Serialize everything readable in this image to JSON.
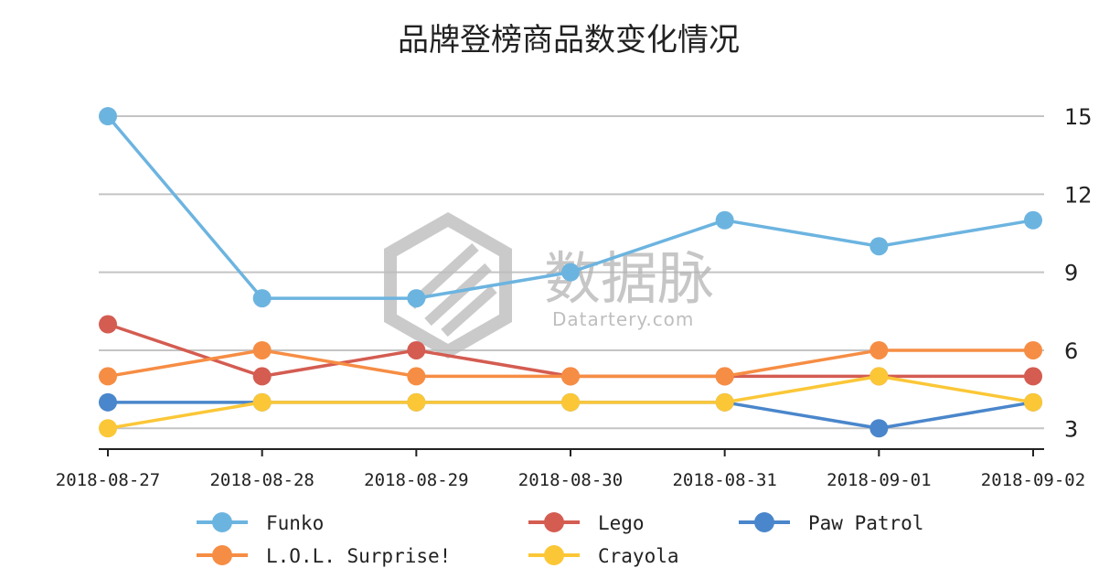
{
  "chart_data": {
    "type": "line",
    "title": "品牌登榜商品数变化情况",
    "categories": [
      "2018-08-27",
      "2018-08-28",
      "2018-08-29",
      "2018-08-30",
      "2018-08-31",
      "2018-09-01",
      "2018-09-02"
    ],
    "yticks": [
      3,
      6,
      9,
      12,
      15
    ],
    "ylim": [
      2.2,
      15.6
    ],
    "y_axis_side": "right",
    "grid": true,
    "legend_position": "bottom",
    "series": [
      {
        "name": "Funko",
        "color": "#6cb4e0",
        "values": [
          15,
          8,
          8,
          9,
          11,
          10,
          11
        ]
      },
      {
        "name": "Lego",
        "color": "#d45c51",
        "values": [
          7,
          5,
          6,
          5,
          5,
          5,
          5
        ]
      },
      {
        "name": "Paw Patrol",
        "color": "#4a86cb",
        "values": [
          4,
          4,
          4,
          4,
          4,
          3,
          4
        ]
      },
      {
        "name": "L.O.L. Surprise!",
        "color": "#f68d44",
        "values": [
          5,
          6,
          5,
          5,
          5,
          6,
          6
        ]
      },
      {
        "name": "Crayola",
        "color": "#fbc737",
        "values": [
          3,
          4,
          4,
          4,
          4,
          5,
          4
        ]
      }
    ]
  },
  "watermark": {
    "text": "数据脉",
    "subtext": "Datartery.com"
  }
}
